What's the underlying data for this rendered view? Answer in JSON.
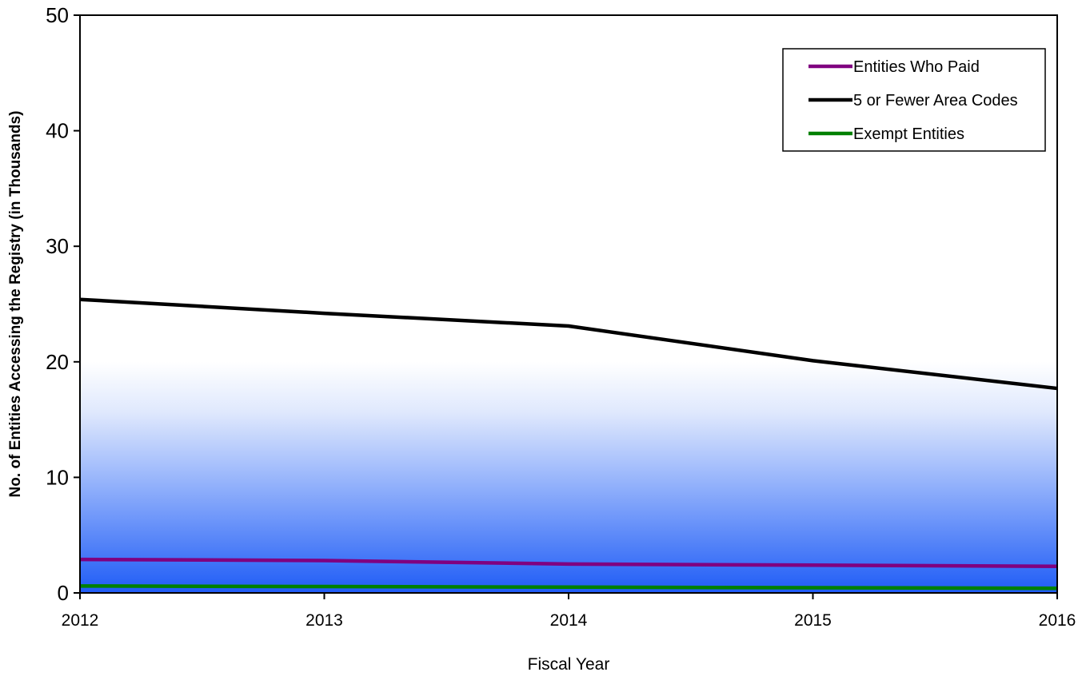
{
  "chart_data": {
    "type": "line",
    "xlabel": "Fiscal Year",
    "ylabel": "No. of Entities Accessing the Registry (in Thousands)",
    "x": [
      "2012",
      "2013",
      "2014",
      "2015",
      "2016"
    ],
    "ylim": [
      0,
      50
    ],
    "yticks": [
      "0",
      "10",
      "20",
      "30",
      "40",
      "50"
    ],
    "grid": false,
    "legend_position": "top-right",
    "background": "blue vertical gradient, white at 20 fading to blue at 0",
    "series": [
      {
        "name": "Entities Who Paid",
        "color": "#800080",
        "values": [
          2.9,
          2.8,
          2.5,
          2.4,
          2.3
        ]
      },
      {
        "name": "5 or Fewer Area Codes",
        "color": "#000000",
        "values": [
          25.4,
          24.2,
          23.1,
          20.1,
          17.7
        ]
      },
      {
        "name": "Exempt Entities",
        "color": "#008000",
        "values": [
          0.6,
          0.55,
          0.5,
          0.45,
          0.4
        ]
      }
    ]
  }
}
